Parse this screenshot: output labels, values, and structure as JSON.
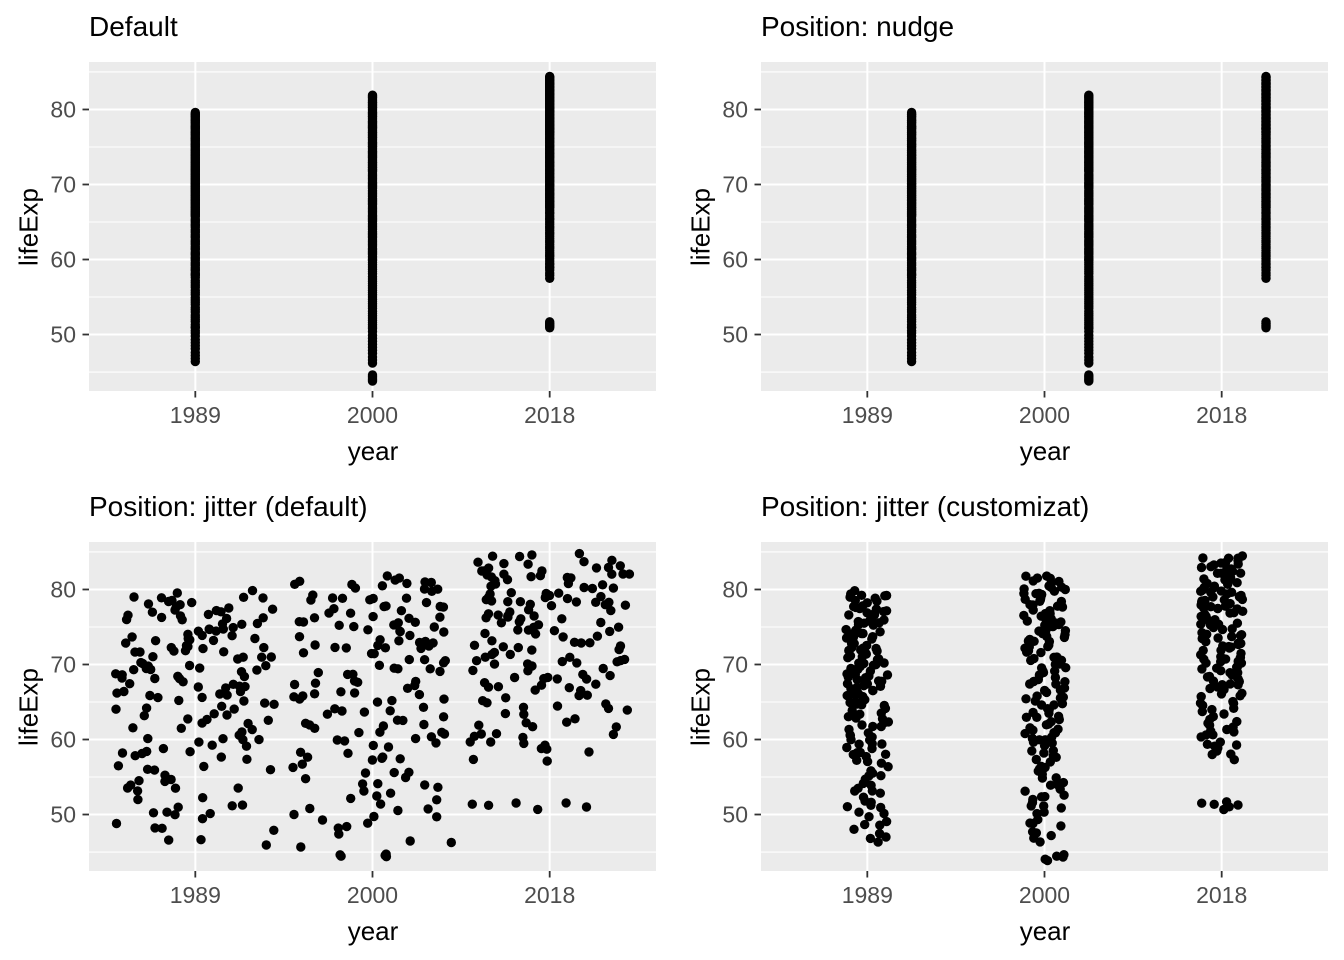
{
  "style": {
    "background": "#FFFFFF",
    "panel_background": "#EBEBEB",
    "grid_color": "#FFFFFF",
    "tick_label_color": "#4D4D4D",
    "tick_mark_color": "#333333",
    "axis_title_color": "#000000",
    "title_color": "#000000",
    "point_color": "#000000"
  },
  "chart_data": {
    "type": "scatter",
    "shared": {
      "xlabel": "year",
      "ylabel": "lifeExp",
      "categories": [
        "1989",
        "2000",
        "2018"
      ],
      "y_major_ticks": [
        50,
        60,
        70,
        80
      ],
      "y_tick_labels": [
        "50",
        "60",
        "70",
        "80"
      ],
      "y_minor_gridlines": [
        45,
        55,
        65,
        75,
        85
      ],
      "ylim": [
        42.47,
        86.33
      ],
      "grid": true,
      "legend": "none",
      "points_per_year": [
        160,
        160,
        160
      ],
      "values": [
        [
          46.4,
          46.8,
          47.2,
          47.6,
          48.1,
          48.5,
          48.9,
          49.3,
          49.8,
          50.2,
          50.5,
          50.9,
          51.0,
          51.3,
          51.7,
          52.0,
          52.3,
          52.6,
          53.0,
          53.3,
          53.6,
          54.0,
          54.3,
          54.6,
          54.9,
          55.3,
          55.6,
          55.9,
          56.3,
          56.6,
          56.9,
          57.2,
          57.6,
          57.9,
          58.0,
          58.2,
          58.5,
          58.7,
          58.9,
          59.2,
          59.4,
          59.6,
          59.9,
          60.1,
          60.3,
          60.6,
          60.8,
          61.0,
          61.3,
          61.5,
          61.7,
          62.0,
          62.2,
          62.4,
          62.6,
          62.9,
          63.1,
          63.3,
          63.6,
          63.8,
          64.0,
          64.3,
          64.5,
          64.7,
          65.0,
          65.2,
          65.4,
          65.7,
          65.9,
          66.0,
          66.1,
          66.3,
          66.4,
          66.6,
          66.7,
          66.9,
          67.0,
          67.2,
          67.3,
          67.5,
          67.6,
          67.8,
          67.9,
          68.0,
          68.2,
          68.3,
          68.5,
          68.6,
          68.8,
          68.9,
          69.1,
          69.2,
          69.4,
          69.5,
          69.7,
          69.8,
          70.0,
          70.1,
          70.2,
          70.4,
          70.5,
          70.7,
          70.8,
          71.0,
          71.1,
          71.3,
          71.4,
          71.6,
          71.7,
          71.9,
          72.0,
          72.1,
          72.3,
          72.4,
          72.6,
          72.7,
          72.9,
          73.0,
          73.2,
          73.3,
          73.5,
          73.6,
          73.8,
          73.9,
          74.0,
          74.2,
          74.3,
          74.5,
          74.6,
          74.8,
          75.0,
          75.1,
          75.3,
          75.4,
          75.6,
          75.8,
          75.9,
          76.1,
          76.2,
          76.4,
          76.6,
          76.7,
          76.9,
          77.0,
          77.2,
          77.4,
          77.5,
          77.7,
          77.8,
          78.0,
          78.2,
          78.3,
          78.5,
          78.6,
          78.8,
          79.0,
          79.1,
          79.3,
          79.4,
          79.6
        ],
        [
          43.8,
          44.0,
          44.2,
          44.4,
          44.6,
          46.2,
          46.6,
          47.0,
          47.5,
          47.9,
          48.3,
          48.7,
          49.1,
          49.5,
          49.9,
          50.4,
          50.8,
          51.0,
          51.3,
          51.6,
          51.9,
          52.2,
          52.5,
          52.8,
          53.1,
          53.5,
          53.8,
          54.1,
          54.4,
          54.7,
          55.0,
          55.3,
          55.6,
          55.9,
          56.2,
          56.5,
          56.8,
          57.1,
          57.4,
          57.7,
          58.1,
          58.4,
          58.7,
          59.0,
          59.3,
          59.6,
          59.9,
          60.0,
          60.2,
          60.4,
          60.7,
          60.9,
          61.1,
          61.3,
          61.5,
          61.8,
          62.0,
          62.2,
          62.4,
          62.6,
          62.9,
          63.1,
          63.3,
          63.5,
          63.7,
          64.0,
          64.2,
          64.4,
          64.6,
          64.8,
          65.1,
          65.3,
          65.5,
          65.7,
          65.9,
          66.2,
          66.4,
          66.6,
          66.8,
          67.0,
          67.3,
          67.5,
          67.7,
          67.9,
          68.1,
          68.4,
          68.6,
          68.8,
          69.0,
          69.2,
          69.5,
          69.7,
          69.9,
          70.1,
          70.3,
          70.6,
          70.8,
          71.0,
          71.2,
          71.4,
          71.7,
          71.9,
          72.0,
          72.2,
          72.3,
          72.5,
          72.7,
          72.9,
          73.0,
          73.2,
          73.4,
          73.6,
          73.7,
          73.9,
          74.1,
          74.3,
          74.4,
          74.6,
          74.8,
          75.0,
          75.1,
          75.3,
          75.5,
          75.6,
          75.8,
          76.0,
          76.2,
          76.3,
          76.5,
          76.7,
          76.9,
          77.0,
          77.2,
          77.4,
          77.6,
          77.7,
          77.9,
          78.1,
          78.3,
          78.4,
          78.6,
          78.8,
          79.0,
          79.1,
          79.3,
          79.5,
          79.6,
          79.8,
          80.0,
          80.2,
          80.3,
          80.5,
          80.7,
          80.9,
          81.0,
          81.2,
          81.4,
          81.6,
          81.7,
          81.9
        ],
        [
          50.9,
          51.1,
          51.2,
          51.4,
          51.5,
          51.7,
          57.5,
          57.9,
          58.2,
          58.6,
          58.9,
          59.0,
          59.3,
          59.5,
          59.8,
          60.1,
          60.4,
          60.6,
          60.9,
          61.2,
          61.5,
          61.7,
          62.0,
          62.3,
          62.5,
          62.8,
          63.1,
          63.4,
          63.6,
          63.9,
          64.2,
          64.4,
          64.7,
          65.0,
          65.3,
          65.5,
          65.8,
          66.1,
          66.3,
          66.6,
          66.9,
          67.0,
          67.2,
          67.3,
          67.5,
          67.7,
          67.8,
          68.0,
          68.2,
          68.3,
          68.5,
          68.7,
          68.8,
          69.0,
          69.2,
          69.3,
          69.5,
          69.7,
          69.9,
          70.0,
          70.2,
          70.4,
          70.5,
          70.7,
          70.9,
          71.0,
          71.2,
          71.4,
          71.5,
          71.7,
          71.9,
          72.0,
          72.2,
          72.4,
          72.5,
          72.7,
          72.9,
          73.0,
          73.2,
          73.4,
          73.6,
          73.7,
          73.9,
          74.1,
          74.2,
          74.4,
          74.6,
          74.7,
          74.9,
          75.1,
          75.2,
          75.4,
          75.6,
          75.7,
          75.9,
          76.1,
          76.2,
          76.4,
          76.6,
          76.7,
          76.9,
          77.0,
          77.1,
          77.3,
          77.4,
          77.5,
          77.6,
          77.8,
          77.9,
          78.0,
          78.1,
          78.3,
          78.4,
          78.5,
          78.7,
          78.8,
          78.9,
          79.0,
          79.2,
          79.3,
          79.4,
          79.6,
          79.7,
          79.8,
          79.9,
          80.1,
          80.2,
          80.3,
          80.4,
          80.6,
          80.7,
          80.8,
          81.0,
          81.1,
          81.2,
          81.3,
          81.5,
          81.6,
          81.7,
          81.9,
          82.0,
          82.1,
          82.2,
          82.4,
          82.5,
          82.6,
          82.7,
          82.9,
          83.0,
          83.1,
          83.3,
          83.4,
          83.5,
          83.6,
          83.8,
          83.9,
          84.0,
          84.2,
          84.3,
          84.4
        ]
      ]
    },
    "panels": [
      {
        "title": "Default",
        "position": "identity",
        "nudge_x": 0,
        "jitter_width": 0,
        "jitter_height": 0
      },
      {
        "title": "Position: nudge",
        "position": "nudge",
        "nudge_x": 0.25,
        "jitter_width": 0,
        "jitter_height": 0
      },
      {
        "title": "Position: jitter (default)",
        "position": "jitter",
        "nudge_x": 0,
        "jitter_width": 0.45,
        "jitter_height": 0.6
      },
      {
        "title": "Position: jitter (customizat)",
        "position": "jitter",
        "nudge_x": 0,
        "jitter_width": 0.12,
        "jitter_height": 0.25
      }
    ]
  }
}
